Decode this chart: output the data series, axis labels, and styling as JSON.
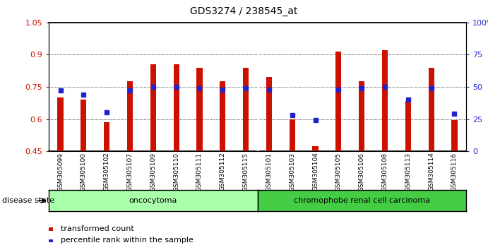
{
  "title": "GDS3274 / 238545_at",
  "samples": [
    "GSM305099",
    "GSM305100",
    "GSM305102",
    "GSM305107",
    "GSM305109",
    "GSM305110",
    "GSM305111",
    "GSM305112",
    "GSM305115",
    "GSM305101",
    "GSM305103",
    "GSM305104",
    "GSM305105",
    "GSM305106",
    "GSM305108",
    "GSM305113",
    "GSM305114",
    "GSM305116"
  ],
  "transformed_count": [
    0.7,
    0.69,
    0.585,
    0.775,
    0.855,
    0.855,
    0.84,
    0.775,
    0.84,
    0.795,
    0.6,
    0.475,
    0.915,
    0.775,
    0.92,
    0.685,
    0.84,
    0.595
  ],
  "percentile_rank_pct": [
    47,
    44,
    30,
    47,
    50,
    50,
    49,
    48,
    49,
    48,
    28,
    24,
    48,
    49,
    50,
    40,
    49,
    29
  ],
  "groups": [
    "oncocytoma",
    "oncocytoma",
    "oncocytoma",
    "oncocytoma",
    "oncocytoma",
    "oncocytoma",
    "oncocytoma",
    "oncocytoma",
    "oncocytoma",
    "chromophobe renal cell carcinoma",
    "chromophobe renal cell carcinoma",
    "chromophobe renal cell carcinoma",
    "chromophobe renal cell carcinoma",
    "chromophobe renal cell carcinoma",
    "chromophobe renal cell carcinoma",
    "chromophobe renal cell carcinoma",
    "chromophobe renal cell carcinoma",
    "chromophobe renal cell carcinoma"
  ],
  "bar_color": "#cc1100",
  "dot_color": "#2222cc",
  "ylim_left": [
    0.45,
    1.05
  ],
  "yticks_left": [
    0.45,
    0.6,
    0.75,
    0.9,
    1.05
  ],
  "ytick_labels_left": [
    "0.45",
    "0.6",
    "0.75",
    "0.9",
    "1.05"
  ],
  "ylim_right": [
    0,
    100
  ],
  "yticks_right": [
    0,
    25,
    50,
    75,
    100
  ],
  "ytick_labels_right": [
    "0",
    "25",
    "50",
    "75",
    "100%"
  ],
  "oncocytoma_color": "#aaffaa",
  "carcinoma_color": "#44cc44",
  "oncocytoma_label": "oncocytoma",
  "carcinoma_label": "chromophobe renal cell carcinoma",
  "disease_state_label": "disease state",
  "legend_bar_label": "transformed count",
  "legend_dot_label": "percentile rank within the sample",
  "bar_bottom": 0.45,
  "n_onco": 9,
  "n_chrom": 9
}
